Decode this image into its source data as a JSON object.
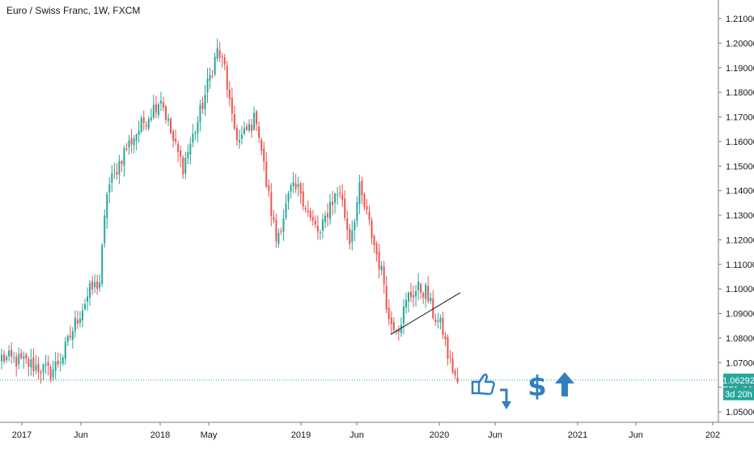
{
  "header": {
    "title": "Euro / Swiss Franc, 1W, FXCM"
  },
  "price": {
    "last": "1.06292",
    "countdown": "3d 20h"
  },
  "colors": {
    "up": "#26a69a",
    "down": "#ef5350",
    "price_line": "#26a69a",
    "icon": "#2f7fc1",
    "grid": "#e0e3eb",
    "text": "#131722"
  },
  "chart_data": {
    "type": "candlestick",
    "title": "Euro / Swiss Franc, 1W, FXCM",
    "x_ticks": [
      "2017",
      "Jun",
      "2018",
      "May",
      "2019",
      "Jun",
      "2020",
      "Jun",
      "2021",
      "Jun",
      "202"
    ],
    "y_ticks": [
      "1.05000",
      "1.06000",
      "1.07000",
      "1.08000",
      "1.09000",
      "1.10000",
      "1.11000",
      "1.12000",
      "1.13000",
      "1.14000",
      "1.15000",
      "1.16000",
      "1.17000",
      "1.18000",
      "1.19000",
      "1.20000",
      "1.21000"
    ],
    "ylim": [
      1.05,
      1.21
    ],
    "last_price": 1.06292,
    "trend_line": [
      [
        1.0815,
        1.0985
      ]
    ],
    "annotations": [
      "thumbs-up-icon",
      "down-arrow-icon",
      "dollar-icon",
      "up-arrow-icon"
    ],
    "anchors": [
      [
        0,
        1.072
      ],
      [
        10,
        1.07
      ],
      [
        20,
        1.066
      ],
      [
        25,
        1.073
      ],
      [
        30,
        1.086
      ],
      [
        36,
        1.099
      ],
      [
        40,
        1.103
      ],
      [
        43,
        1.14
      ],
      [
        50,
        1.156
      ],
      [
        58,
        1.168
      ],
      [
        65,
        1.178
      ],
      [
        70,
        1.16
      ],
      [
        74,
        1.15
      ],
      [
        80,
        1.168
      ],
      [
        86,
        1.19
      ],
      [
        88,
        1.197
      ],
      [
        91,
        1.19
      ],
      [
        94,
        1.168
      ],
      [
        97,
        1.16
      ],
      [
        104,
        1.17
      ],
      [
        108,
        1.143
      ],
      [
        112,
        1.12
      ],
      [
        118,
        1.14
      ],
      [
        122,
        1.14
      ],
      [
        126,
        1.128
      ],
      [
        130,
        1.122
      ],
      [
        134,
        1.135
      ],
      [
        138,
        1.14
      ],
      [
        142,
        1.12
      ],
      [
        146,
        1.14
      ],
      [
        149,
        1.13
      ],
      [
        152,
        1.118
      ],
      [
        156,
        1.103
      ],
      [
        158,
        1.087
      ],
      [
        162,
        1.085
      ],
      [
        166,
        1.097
      ],
      [
        170,
        1.1
      ],
      [
        173,
        1.099
      ],
      [
        176,
        1.09
      ],
      [
        180,
        1.083
      ],
      [
        182,
        1.073
      ],
      [
        186,
        1.062
      ]
    ]
  }
}
